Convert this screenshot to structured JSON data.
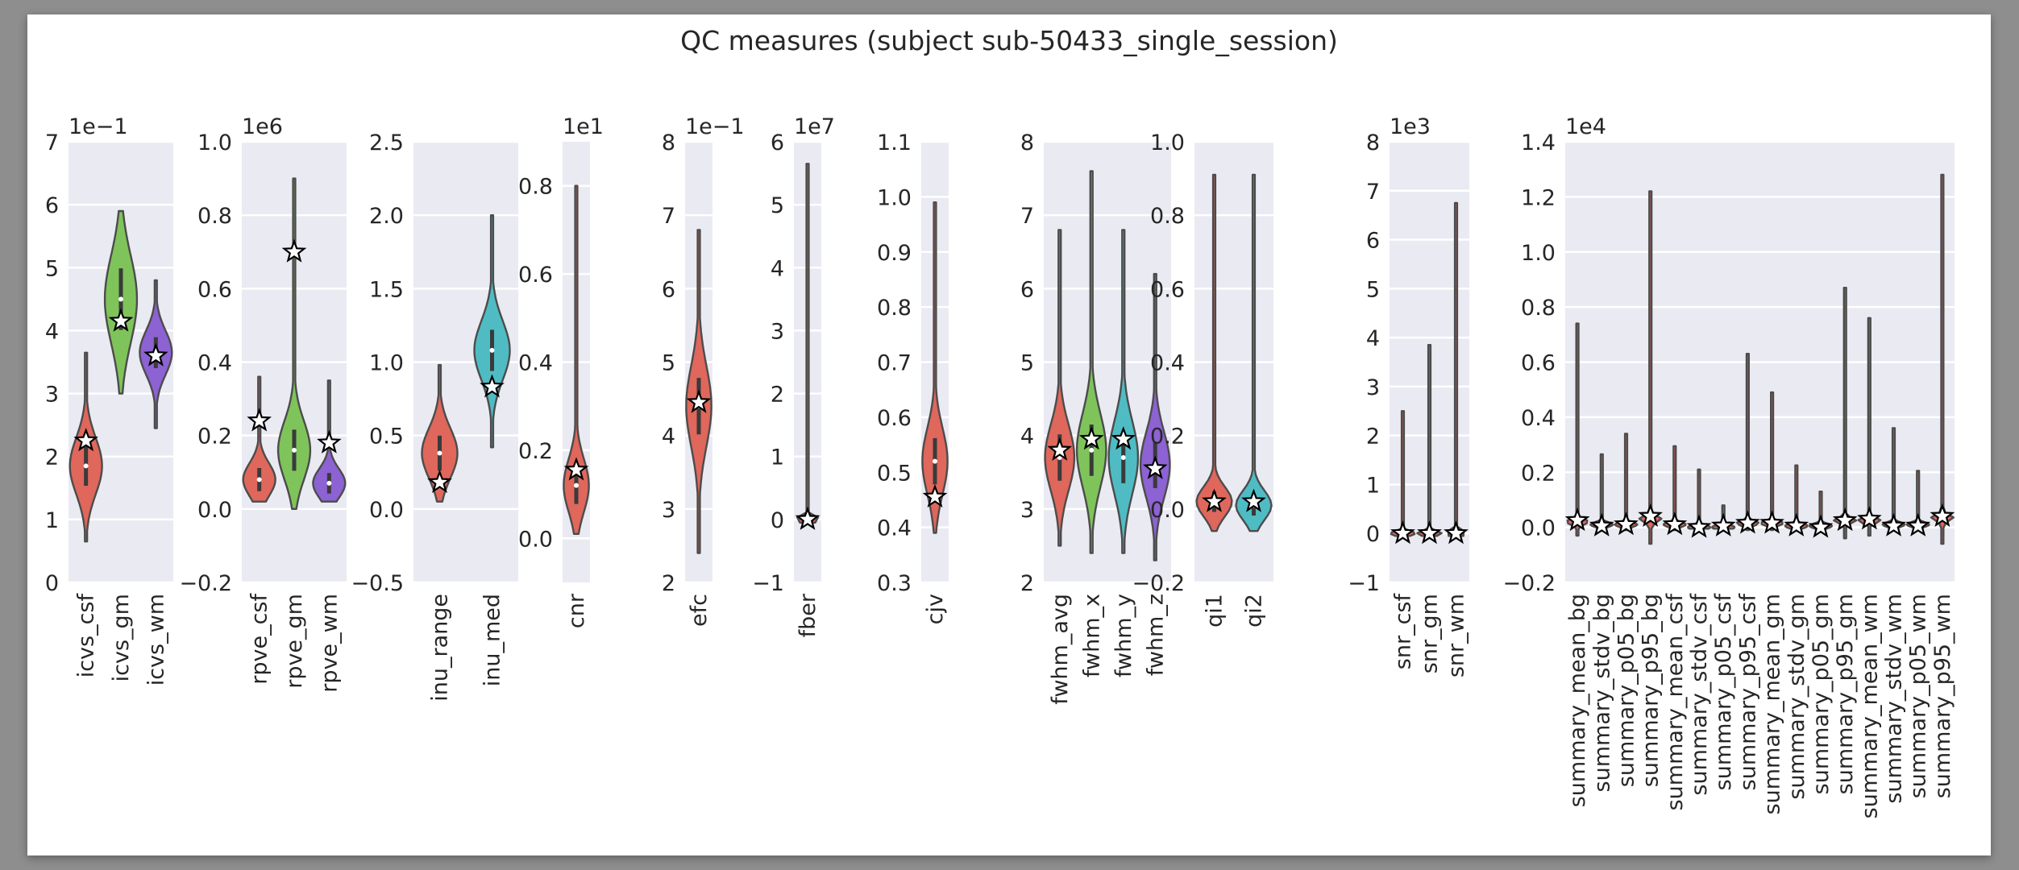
{
  "colors": {
    "panel_bg": "#eaeaf2",
    "grid": "#ffffff",
    "violin_edge": "#4c4c4c",
    "palette": [
      "#e0675b",
      "#7fc45a",
      "#4fbcc4",
      "#8d62d3",
      "#e8b44a"
    ]
  },
  "chart_data": {
    "type": "violin",
    "title": "QC measures (subject sub-50433_single_session)",
    "panels": [
      {
        "ylim": [
          0,
          7
        ],
        "ticks": [
          0,
          1,
          2,
          3,
          4,
          5,
          6,
          7
        ],
        "tick_labels": [
          "0",
          "1",
          "2",
          "3",
          "4",
          "5",
          "6",
          "7"
        ],
        "multiplier": "1e−1",
        "series": [
          {
            "name": "icvs_csf",
            "center": 1.85,
            "spread": 0.45,
            "min": 0.65,
            "max": 3.65,
            "subject": 2.25,
            "color_index": 0
          },
          {
            "name": "icvs_gm",
            "center": 4.5,
            "spread": 0.7,
            "min": 3.0,
            "max": 5.9,
            "subject": 4.15,
            "color_index": 1
          },
          {
            "name": "icvs_wm",
            "center": 3.65,
            "spread": 0.35,
            "min": 2.45,
            "max": 4.8,
            "subject": 3.6,
            "color_index": 3
          }
        ]
      },
      {
        "ylim": [
          -0.2,
          1.0
        ],
        "ticks": [
          -0.2,
          0,
          0.2,
          0.4,
          0.6,
          0.8,
          1.0
        ],
        "tick_labels": [
          "−0.2",
          "0.0",
          "0.2",
          "0.4",
          "0.6",
          "0.8",
          "1.0"
        ],
        "multiplier": "1e6",
        "series": [
          {
            "name": "rpve_csf",
            "center": 0.08,
            "spread": 0.045,
            "min": 0.02,
            "max": 0.36,
            "subject": 0.24,
            "color_index": 0
          },
          {
            "name": "rpve_gm",
            "center": 0.16,
            "spread": 0.08,
            "min": 0.0,
            "max": 0.9,
            "subject": 0.7,
            "color_index": 1
          },
          {
            "name": "rpve_wm",
            "center": 0.07,
            "spread": 0.04,
            "min": 0.02,
            "max": 0.35,
            "subject": 0.18,
            "color_index": 3
          }
        ]
      },
      {
        "ylim": [
          -0.5,
          2.5
        ],
        "ticks": [
          -0.5,
          0,
          0.5,
          1.0,
          1.5,
          2.0,
          2.5
        ],
        "tick_labels": [
          "−0.5",
          "0.0",
          "0.5",
          "1.0",
          "1.5",
          "2.0",
          "2.5"
        ],
        "multiplier": "",
        "series": [
          {
            "name": "inu_range",
            "center": 0.38,
            "spread": 0.17,
            "min": 0.05,
            "max": 0.98,
            "subject": 0.18,
            "color_index": 0
          },
          {
            "name": "inu_med",
            "center": 1.08,
            "spread": 0.2,
            "min": 0.42,
            "max": 2.0,
            "subject": 0.83,
            "color_index": 2
          }
        ]
      },
      {
        "ylim": [
          -0.1,
          0.9
        ],
        "ticks": [
          0,
          0.2,
          0.4,
          0.6,
          0.8
        ],
        "tick_labels": [
          "0.0",
          "0.2",
          "0.4",
          "0.6",
          "0.8"
        ],
        "multiplier": "1e1",
        "series": [
          {
            "name": "cnr",
            "center": 0.12,
            "spread": 0.06,
            "min": 0.01,
            "max": 0.8,
            "subject": 0.155,
            "color_index": 0
          }
        ]
      },
      {
        "ylim": [
          2,
          8
        ],
        "ticks": [
          2,
          3,
          4,
          5,
          6,
          7,
          8
        ],
        "tick_labels": [
          "2",
          "3",
          "4",
          "5",
          "6",
          "7",
          "8"
        ],
        "multiplier": "1e−1",
        "series": [
          {
            "name": "efc",
            "center": 4.4,
            "spread": 0.55,
            "min": 2.4,
            "max": 6.8,
            "subject": 4.45,
            "color_index": 0
          }
        ]
      },
      {
        "ylim": [
          -1,
          6
        ],
        "ticks": [
          -1,
          0,
          1,
          2,
          3,
          4,
          5,
          6
        ],
        "tick_labels": [
          "−1",
          "0",
          "1",
          "2",
          "3",
          "4",
          "5",
          "6"
        ],
        "multiplier": "1e7",
        "series": [
          {
            "name": "fber",
            "center": 0.0,
            "spread": 0.05,
            "min": -0.05,
            "max": 5.65,
            "subject": 0.0,
            "color_index": 0
          }
        ]
      },
      {
        "ylim": [
          0.3,
          1.1
        ],
        "ticks": [
          0.3,
          0.4,
          0.5,
          0.6,
          0.7,
          0.8,
          0.9,
          1.0,
          1.1
        ],
        "tick_labels": [
          "0.3",
          "0.4",
          "0.5",
          "0.6",
          "0.7",
          "0.8",
          "0.9",
          "1.0",
          "1.1"
        ],
        "multiplier": "",
        "series": [
          {
            "name": "cjv",
            "center": 0.52,
            "spread": 0.06,
            "min": 0.39,
            "max": 0.99,
            "subject": 0.455,
            "color_index": 0
          }
        ]
      },
      {
        "ylim": [
          2,
          8
        ],
        "ticks": [
          2,
          3,
          4,
          5,
          6,
          7,
          8
        ],
        "tick_labels": [
          "2",
          "3",
          "4",
          "5",
          "6",
          "7",
          "8"
        ],
        "multiplier": "",
        "series": [
          {
            "name": "fwhm_avg",
            "center": 3.7,
            "spread": 0.45,
            "min": 2.5,
            "max": 6.8,
            "subject": 3.8,
            "color_index": 0
          },
          {
            "name": "fwhm_x",
            "center": 3.8,
            "spread": 0.5,
            "min": 2.4,
            "max": 7.6,
            "subject": 3.95,
            "color_index": 1
          },
          {
            "name": "fwhm_y",
            "center": 3.7,
            "spread": 0.5,
            "min": 2.4,
            "max": 6.8,
            "subject": 3.95,
            "color_index": 2
          },
          {
            "name": "fwhm_z",
            "center": 3.6,
            "spread": 0.45,
            "min": 2.3,
            "max": 6.2,
            "subject": 3.55,
            "color_index": 3
          }
        ]
      },
      {
        "ylim": [
          -0.2,
          1.0
        ],
        "ticks": [
          -0.2,
          0,
          0.2,
          0.4,
          0.6,
          0.8,
          1.0
        ],
        "tick_labels": [
          "−0.2",
          "0.0",
          "0.2",
          "0.4",
          "0.6",
          "0.8",
          "1.0"
        ],
        "multiplier": "",
        "series": [
          {
            "name": "qi1",
            "center": 0.02,
            "spread": 0.04,
            "min": -0.06,
            "max": 0.91,
            "subject": 0.02,
            "color_index": 0
          },
          {
            "name": "qi2",
            "center": 0.01,
            "spread": 0.04,
            "min": -0.06,
            "max": 0.91,
            "subject": 0.02,
            "color_index": 2
          }
        ]
      },
      {
        "ylim": [
          -1,
          8
        ],
        "ticks": [
          -1,
          0,
          1,
          2,
          3,
          4,
          5,
          6,
          7,
          8
        ],
        "tick_labels": [
          "−1",
          "0",
          "1",
          "2",
          "3",
          "4",
          "5",
          "6",
          "7",
          "8"
        ],
        "multiplier": "1e3",
        "series": [
          {
            "name": "snr_csf",
            "center": 0.0,
            "spread": 0.05,
            "min": -0.05,
            "max": 2.5,
            "subject": 0.0,
            "color_index": 0
          },
          {
            "name": "snr_gm",
            "center": 0.0,
            "spread": 0.05,
            "min": -0.05,
            "max": 3.85,
            "subject": 0.0,
            "color_index": 0
          },
          {
            "name": "snr_wm",
            "center": 0.0,
            "spread": 0.05,
            "min": -0.05,
            "max": 6.75,
            "subject": 0.0,
            "color_index": 0
          }
        ]
      },
      {
        "ylim": [
          -0.2,
          1.4
        ],
        "ticks": [
          -0.2,
          0,
          0.2,
          0.4,
          0.6,
          0.8,
          1.0,
          1.2,
          1.4
        ],
        "tick_labels": [
          "−0.2",
          "0.0",
          "0.2",
          "0.4",
          "0.6",
          "0.8",
          "1.0",
          "1.2",
          "1.4"
        ],
        "multiplier": "1e4",
        "series": [
          {
            "name": "summary_mean_bg",
            "center": 0.02,
            "spread": 0.01,
            "min": -0.03,
            "max": 0.74,
            "subject": 0.025,
            "color_index": 0
          },
          {
            "name": "summary_stdv_bg",
            "center": 0.01,
            "spread": 0.008,
            "min": -0.01,
            "max": 0.265,
            "subject": 0.005,
            "color_index": 0
          },
          {
            "name": "summary_p05_bg",
            "center": 0.01,
            "spread": 0.008,
            "min": -0.01,
            "max": 0.34,
            "subject": 0.01,
            "color_index": 0
          },
          {
            "name": "summary_p95_bg",
            "center": 0.03,
            "spread": 0.012,
            "min": -0.06,
            "max": 1.22,
            "subject": 0.04,
            "color_index": 0
          },
          {
            "name": "summary_mean_csf",
            "center": 0.01,
            "spread": 0.008,
            "min": -0.01,
            "max": 0.295,
            "subject": 0.01,
            "color_index": 0
          },
          {
            "name": "summary_stdv_csf",
            "center": 0.0,
            "spread": 0.006,
            "min": -0.005,
            "max": 0.21,
            "subject": 0.0,
            "color_index": 0
          },
          {
            "name": "summary_p05_csf",
            "center": 0.0,
            "spread": 0.006,
            "min": -0.005,
            "max": 0.08,
            "subject": 0.005,
            "color_index": 0
          },
          {
            "name": "summary_p95_csf",
            "center": 0.015,
            "spread": 0.008,
            "min": -0.01,
            "max": 0.63,
            "subject": 0.015,
            "color_index": 0
          },
          {
            "name": "summary_mean_gm",
            "center": 0.015,
            "spread": 0.008,
            "min": -0.01,
            "max": 0.49,
            "subject": 0.015,
            "color_index": 0
          },
          {
            "name": "summary_stdv_gm",
            "center": 0.005,
            "spread": 0.006,
            "min": -0.01,
            "max": 0.225,
            "subject": 0.005,
            "color_index": 0
          },
          {
            "name": "summary_p05_gm",
            "center": 0.005,
            "spread": 0.006,
            "min": -0.01,
            "max": 0.13,
            "subject": 0.0,
            "color_index": 0
          },
          {
            "name": "summary_p95_gm",
            "center": 0.025,
            "spread": 0.01,
            "min": -0.04,
            "max": 0.87,
            "subject": 0.025,
            "color_index": 0
          },
          {
            "name": "summary_mean_wm",
            "center": 0.025,
            "spread": 0.01,
            "min": -0.03,
            "max": 0.76,
            "subject": 0.03,
            "color_index": 0
          },
          {
            "name": "summary_stdv_wm",
            "center": 0.01,
            "spread": 0.008,
            "min": -0.01,
            "max": 0.36,
            "subject": 0.005,
            "color_index": 0
          },
          {
            "name": "summary_p05_wm",
            "center": 0.01,
            "spread": 0.006,
            "min": -0.01,
            "max": 0.205,
            "subject": 0.005,
            "color_index": 0
          },
          {
            "name": "summary_p95_wm",
            "center": 0.035,
            "spread": 0.012,
            "min": -0.06,
            "max": 1.28,
            "subject": 0.04,
            "color_index": 0
          }
        ]
      }
    ]
  }
}
